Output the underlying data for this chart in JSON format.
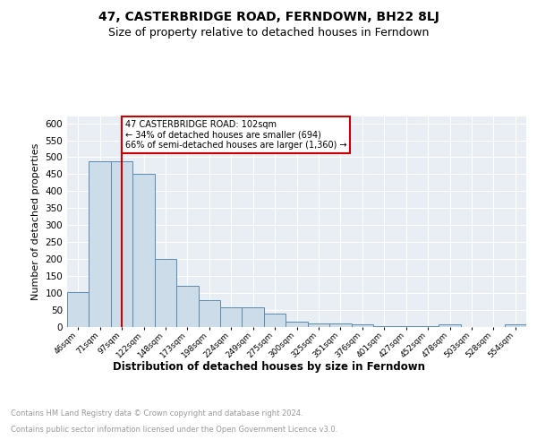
{
  "title": "47, CASTERBRIDGE ROAD, FERNDOWN, BH22 8LJ",
  "subtitle": "Size of property relative to detached houses in Ferndown",
  "xlabel": "Distribution of detached houses by size in Ferndown",
  "ylabel": "Number of detached properties",
  "bar_labels": [
    "46sqm",
    "71sqm",
    "97sqm",
    "122sqm",
    "148sqm",
    "173sqm",
    "198sqm",
    "224sqm",
    "249sqm",
    "275sqm",
    "300sqm",
    "325sqm",
    "351sqm",
    "376sqm",
    "401sqm",
    "427sqm",
    "452sqm",
    "478sqm",
    "503sqm",
    "528sqm",
    "554sqm"
  ],
  "bar_values": [
    103,
    487,
    487,
    450,
    200,
    122,
    80,
    57,
    57,
    40,
    17,
    10,
    10,
    8,
    2,
    2,
    2,
    7,
    0,
    0,
    8
  ],
  "bar_color": "#ccdce8",
  "bar_edge_color": "#5a8ab0",
  "vline_x": 2,
  "vline_color": "#cc0000",
  "annotation_lines": [
    "47 CASTERBRIDGE ROAD: 102sqm",
    "← 34% of detached houses are smaller (694)",
    "66% of semi-detached houses are larger (1,360) →"
  ],
  "annotation_box_color": "#ffffff",
  "annotation_box_edge": "#cc0000",
  "ylim": [
    0,
    620
  ],
  "yticks": [
    0,
    50,
    100,
    150,
    200,
    250,
    300,
    350,
    400,
    450,
    500,
    550,
    600
  ],
  "footer_line1": "Contains HM Land Registry data © Crown copyright and database right 2024.",
  "footer_line2": "Contains public sector information licensed under the Open Government Licence v3.0.",
  "plot_bg_color": "#e8eef4",
  "grid_color": "#ffffff",
  "title_fontsize": 10,
  "subtitle_fontsize": 9
}
